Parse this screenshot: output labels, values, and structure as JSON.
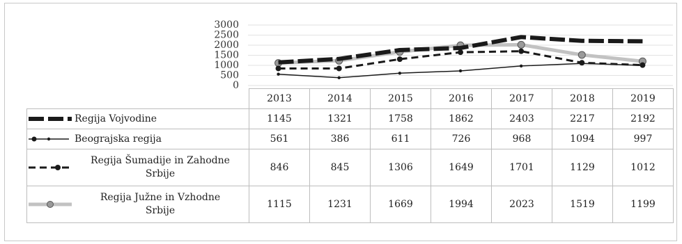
{
  "chart_data": {
    "type": "line",
    "title": "",
    "xlabel": "",
    "ylabel": "",
    "categories": [
      "2013",
      "2014",
      "2015",
      "2016",
      "2017",
      "2018",
      "2019"
    ],
    "y_ticks": [
      "3000",
      "2500",
      "2000",
      "1500",
      "1000",
      "500",
      "0"
    ],
    "ylim": [
      0,
      3000
    ],
    "grid": true,
    "legend": "data table below chart",
    "series": [
      {
        "name": "Regija Vojvodine",
        "values": [
          1145,
          1321,
          1758,
          1862,
          2403,
          2217,
          2192
        ],
        "color": "#1a1a1a",
        "style": "thick-dashed"
      },
      {
        "name": "Beograjska regija",
        "values": [
          561,
          386,
          611,
          726,
          968,
          1094,
          997
        ],
        "color": "#1a1a1a",
        "style": "thin-solid-dot-markers"
      },
      {
        "name": "Regija Šumadije in Zahodne Srbije",
        "values": [
          846,
          845,
          1306,
          1649,
          1701,
          1129,
          1012
        ],
        "color": "#1a1a1a",
        "style": "dashed-circle-markers"
      },
      {
        "name": "Regija Južne in Vzhodne Srbije",
        "values": [
          1115,
          1231,
          1669,
          1994,
          2023,
          1519,
          1199
        ],
        "color": "#c2c2c2",
        "style": "thick-light-circle-markers"
      }
    ],
    "table_rows": [
      {
        "label_lines": [
          "Regija Vojvodine"
        ],
        "cells": [
          "1145",
          "1321",
          "1758",
          "1862",
          "2403",
          "2217",
          "2192"
        ]
      },
      {
        "label_lines": [
          "Beograjska regija"
        ],
        "cells": [
          "561",
          "386",
          "611",
          "726",
          "968",
          "1094",
          "997"
        ]
      },
      {
        "label_lines": [
          "Regija Šumadije in Zahodne",
          "Srbije"
        ],
        "cells": [
          "846",
          "845",
          "1306",
          "1649",
          "1701",
          "1129",
          "1012"
        ]
      },
      {
        "label_lines": [
          "Regija Južne in Vzhodne",
          "Srbije"
        ],
        "cells": [
          "1115",
          "1231",
          "1669",
          "1994",
          "2023",
          "1519",
          "1199"
        ]
      }
    ]
  }
}
